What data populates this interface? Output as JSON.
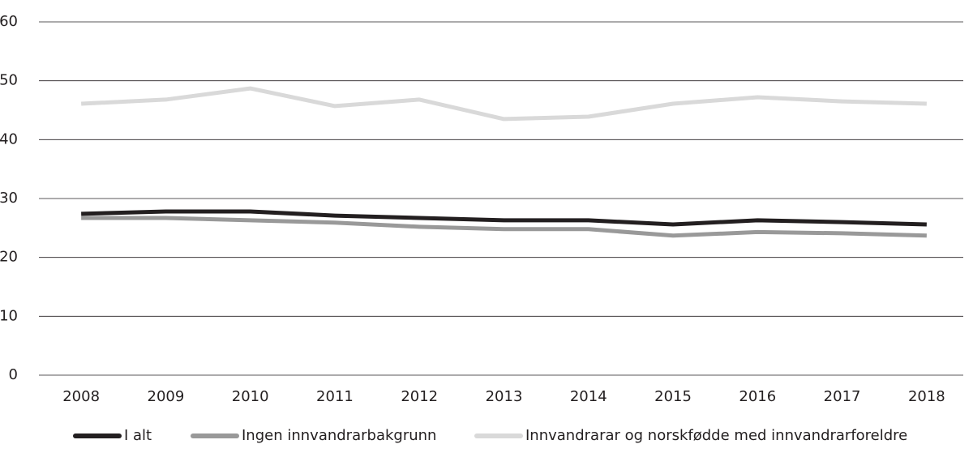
{
  "chart_data": {
    "type": "line",
    "categories": [
      "2008",
      "2009",
      "2010",
      "2011",
      "2012",
      "2013",
      "2014",
      "2015",
      "2016",
      "2017",
      "2018"
    ],
    "series": [
      {
        "name": "I alt",
        "color": "#231f20",
        "values": [
          27.4,
          27.8,
          27.8,
          27.1,
          26.7,
          26.3,
          26.3,
          25.6,
          26.3,
          26.0,
          25.6
        ]
      },
      {
        "name": "Ingen innvandrarbakgrunn",
        "color": "#999999",
        "values": [
          26.7,
          26.7,
          26.3,
          25.9,
          25.2,
          24.8,
          24.8,
          23.7,
          24.3,
          24.1,
          23.7
        ]
      },
      {
        "name": "Innvandrarar og norskfødde med innvandrarforeldre",
        "color": "#d9d9d9",
        "values": [
          46.1,
          46.8,
          48.7,
          45.7,
          46.8,
          43.5,
          43.9,
          46.1,
          47.2,
          46.5,
          46.1
        ]
      }
    ],
    "ylim": [
      0,
      60
    ],
    "yticks": [
      0,
      10,
      20,
      30,
      40,
      50,
      60
    ],
    "grid": true,
    "legend": "bottom"
  }
}
